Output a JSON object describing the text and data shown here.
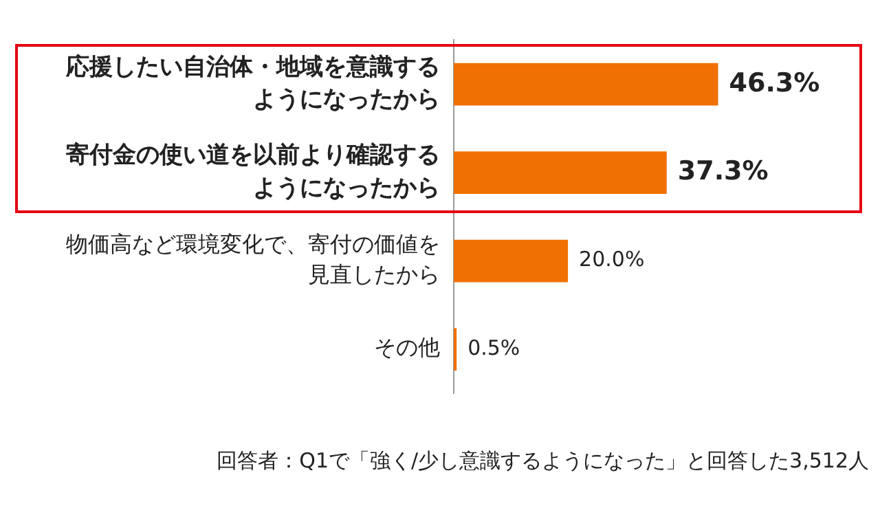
{
  "chart_data": {
    "type": "bar",
    "orientation": "horizontal",
    "categories": [
      "応援したい自治体・地域を意識するようになったから",
      "寄付金の使い道を以前より確認するようになったから",
      "物価高など環境変化で、寄付の価値を見直したから",
      "その他"
    ],
    "values": [
      46.3,
      37.3,
      20.0,
      0.5
    ],
    "color": "#f07000",
    "value_labels": [
      "46.3%",
      "37.3%",
      "20.0%",
      "0.5%"
    ],
    "annotations": [
      "回答者：Q1で「強く/少し意識するようになった」と回答した3,512人"
    ],
    "grid": false,
    "legend": false
  }
}
